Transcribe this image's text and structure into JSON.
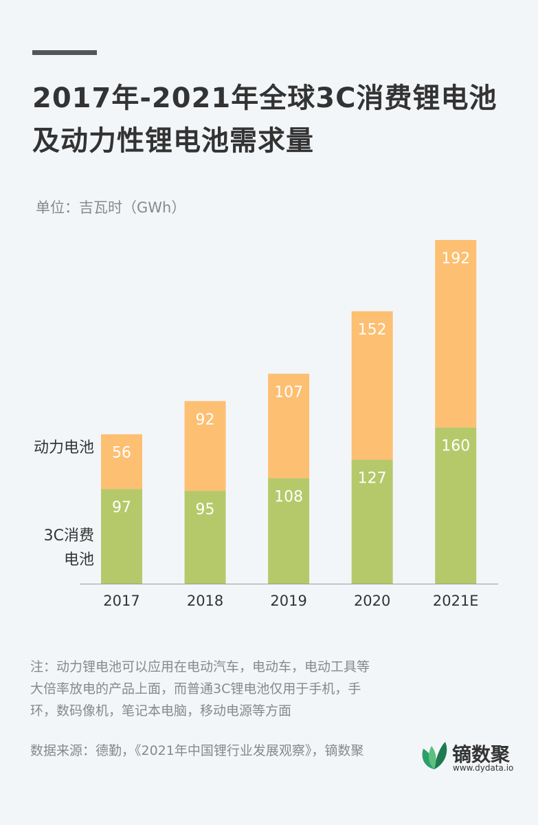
{
  "chart_data": {
    "type": "stacked-bar",
    "title": "2017年-2021年全球3C消费锂电池及动力性锂电池需求量",
    "subtitle": "单位：吉瓦时（GWh）",
    "categories": [
      "2017",
      "2018",
      "2019",
      "2020",
      "2021E"
    ],
    "series": [
      {
        "name": "3C消费电池",
        "color": "#b5c96a",
        "values": [
          97,
          95,
          108,
          127,
          160
        ]
      },
      {
        "name": "动力电池",
        "color": "#fdbf72",
        "values": [
          56,
          92,
          107,
          152,
          192
        ]
      }
    ],
    "note": "注：动力锂电池可以应用在电动汽车，电动车，电动工具等大倍率放电的产品上面，而普通3C锂电池仅用于手机，手环，数码像机，笔记本电脑，移动电源等方面",
    "source": "数据来源：德勤，《2021年中国锂行业发展观察》，镝数聚",
    "logo": {
      "name": "镝数聚",
      "url": "www.dydata.io"
    }
  }
}
